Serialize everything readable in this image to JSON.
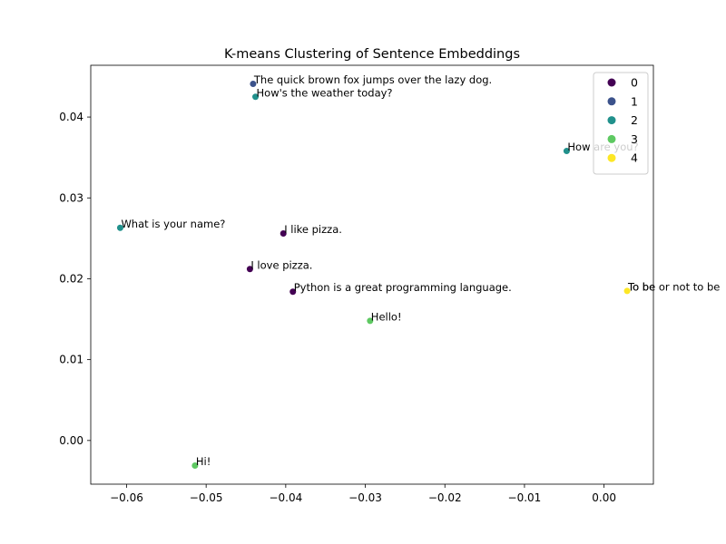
{
  "chart_data": {
    "type": "scatter",
    "title": "K-means Clustering of Sentence Embeddings",
    "xlabel": "",
    "ylabel": "",
    "xlim": [
      -0.0645,
      0.0062
    ],
    "ylim": [
      -0.0054,
      0.0464
    ],
    "xticks": [
      -0.06,
      -0.05,
      -0.04,
      -0.03,
      -0.02,
      -0.01,
      0.0
    ],
    "xtick_labels": [
      "−0.06",
      "−0.05",
      "−0.04",
      "−0.03",
      "−0.02",
      "−0.01",
      "0.00"
    ],
    "yticks": [
      0.0,
      0.01,
      0.02,
      0.03,
      0.04
    ],
    "ytick_labels": [
      "0.00",
      "0.01",
      "0.02",
      "0.03",
      "0.04"
    ],
    "grid": false,
    "legend": {
      "position": "top-right",
      "entries": [
        {
          "label": "0",
          "color": "#440154"
        },
        {
          "label": "1",
          "color": "#3b528b"
        },
        {
          "label": "2",
          "color": "#21918c"
        },
        {
          "label": "3",
          "color": "#5ec962"
        },
        {
          "label": "4",
          "color": "#fde725"
        }
      ]
    },
    "points": [
      {
        "x": -0.0441,
        "y": 0.0441,
        "cluster": 1,
        "label": "The quick brown fox jumps over the lazy dog."
      },
      {
        "x": -0.0438,
        "y": 0.0425,
        "cluster": 2,
        "label": "How's the weather today?"
      },
      {
        "x": -0.0047,
        "y": 0.0358,
        "cluster": 2,
        "label": "How are you?"
      },
      {
        "x": -0.0608,
        "y": 0.0263,
        "cluster": 2,
        "label": "What is your name?"
      },
      {
        "x": -0.0403,
        "y": 0.0256,
        "cluster": 0,
        "label": "I like pizza."
      },
      {
        "x": -0.0445,
        "y": 0.0212,
        "cluster": 0,
        "label": "I love pizza."
      },
      {
        "x": -0.0391,
        "y": 0.0184,
        "cluster": 0,
        "label": "Python is a great programming language."
      },
      {
        "x": 0.0029,
        "y": 0.0185,
        "cluster": 4,
        "label": "To be or not to be"
      },
      {
        "x": -0.0294,
        "y": 0.0148,
        "cluster": 3,
        "label": "Hello!"
      },
      {
        "x": -0.0514,
        "y": -0.0031,
        "cluster": 3,
        "label": "Hi!"
      }
    ]
  }
}
